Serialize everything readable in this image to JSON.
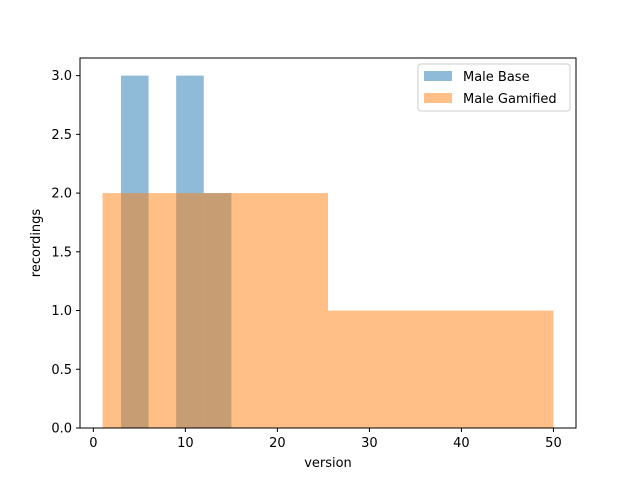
{
  "chart_data": {
    "type": "bar",
    "subtype": "histogram",
    "title": "",
    "xlabel": "version",
    "ylabel": "recordings",
    "xlim": [
      -1.45,
      52.45
    ],
    "ylim": [
      0,
      3.15
    ],
    "xticks": [
      0,
      10,
      20,
      30,
      40,
      50
    ],
    "xtick_labels": [
      "0",
      "10",
      "20",
      "30",
      "40",
      "50"
    ],
    "yticks": [
      0,
      0.5,
      1.0,
      1.5,
      2.0,
      2.5,
      3.0
    ],
    "ytick_labels": [
      "0.0",
      "0.5",
      "1.0",
      "1.5",
      "2.0",
      "2.5",
      "3.0"
    ],
    "grid": false,
    "legend_position": "top-right",
    "series": [
      {
        "name": "Male Base",
        "color": "#1f77b4",
        "alpha": 0.5,
        "bins": [
          {
            "x0": 3,
            "x1": 6,
            "count": 3
          },
          {
            "x0": 6,
            "x1": 9,
            "count": 0
          },
          {
            "x0": 9,
            "x1": 12,
            "count": 3
          },
          {
            "x0": 12,
            "x1": 15,
            "count": 2
          }
        ]
      },
      {
        "name": "Male Gamified",
        "color": "#ff7f0e",
        "alpha": 0.5,
        "bins": [
          {
            "x0": 1,
            "x1": 25.5,
            "count": 2
          },
          {
            "x0": 25.5,
            "x1": 50,
            "count": 1
          }
        ]
      }
    ]
  }
}
